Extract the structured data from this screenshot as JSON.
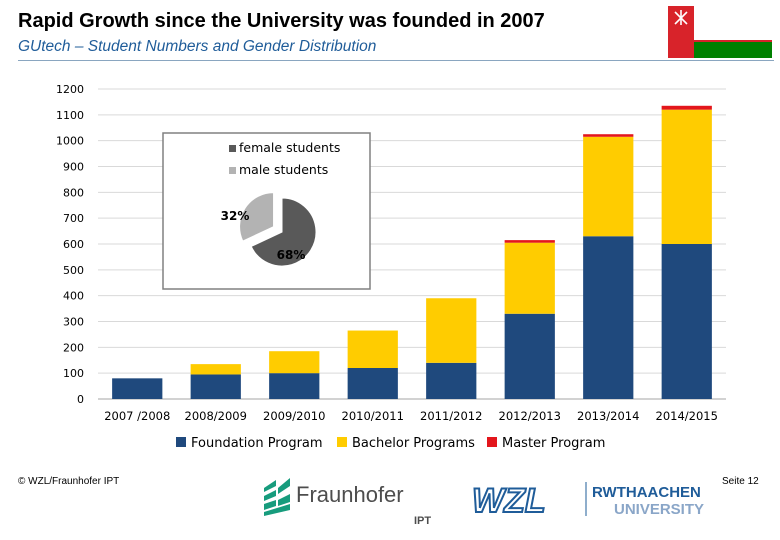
{
  "header": {
    "title": "Rapid Growth since the University was founded in 2007",
    "subtitle": "GUtech – Student Numbers and Gender Distribution"
  },
  "chart_data": [
    {
      "type": "bar",
      "stacked": true,
      "categories": [
        "2007 /2008",
        "2008/2009",
        "2009/2010",
        "2010/2011",
        "2011/2012",
        "2012/2013",
        "2013/2014",
        "2014/2015"
      ],
      "series": [
        {
          "name": "Foundation Program",
          "color": "#1f497d",
          "values": [
            80,
            95,
            100,
            120,
            140,
            330,
            630,
            600
          ]
        },
        {
          "name": "Bachelor Programs",
          "color": "#ffcc00",
          "values": [
            0,
            40,
            85,
            145,
            250,
            275,
            385,
            520
          ]
        },
        {
          "name": "Master Program",
          "color": "#e3161c",
          "values": [
            0,
            0,
            0,
            0,
            0,
            10,
            10,
            15
          ]
        }
      ],
      "ylim": [
        0,
        1200
      ],
      "yticks": [
        "0",
        "100",
        "200",
        "300",
        "400",
        "500",
        "600",
        "700",
        "800",
        "900",
        "1000",
        "1100",
        "1200"
      ],
      "grid": true,
      "legend": "bottom"
    },
    {
      "type": "pie",
      "slices": [
        {
          "name": "female students",
          "value": 68,
          "label": "68%",
          "color": "#595959"
        },
        {
          "name": "male students",
          "value": 32,
          "label": "32%",
          "color": "#b3b3b3"
        }
      ],
      "legend": "top"
    }
  ],
  "footer": {
    "copyright": "© WZL/Fraunhofer IPT",
    "page": "Seite 12",
    "logo_fraunhofer": "Fraunhofer",
    "logo_fraunhofer_sub": "IPT",
    "logo_wzl": "WZL",
    "logo_rwth_line1": "RWTHAACHEN",
    "logo_rwth_line2": "UNIVERSITY"
  },
  "colors": {
    "subtitle": "#1f5c99",
    "flag_red": "#d8232a",
    "flag_green": "#008000"
  },
  "icons": [
    "oman-flag-icon",
    "fraunhofer-logo-icon",
    "wzl-logo-icon",
    "rwth-logo-icon"
  ]
}
